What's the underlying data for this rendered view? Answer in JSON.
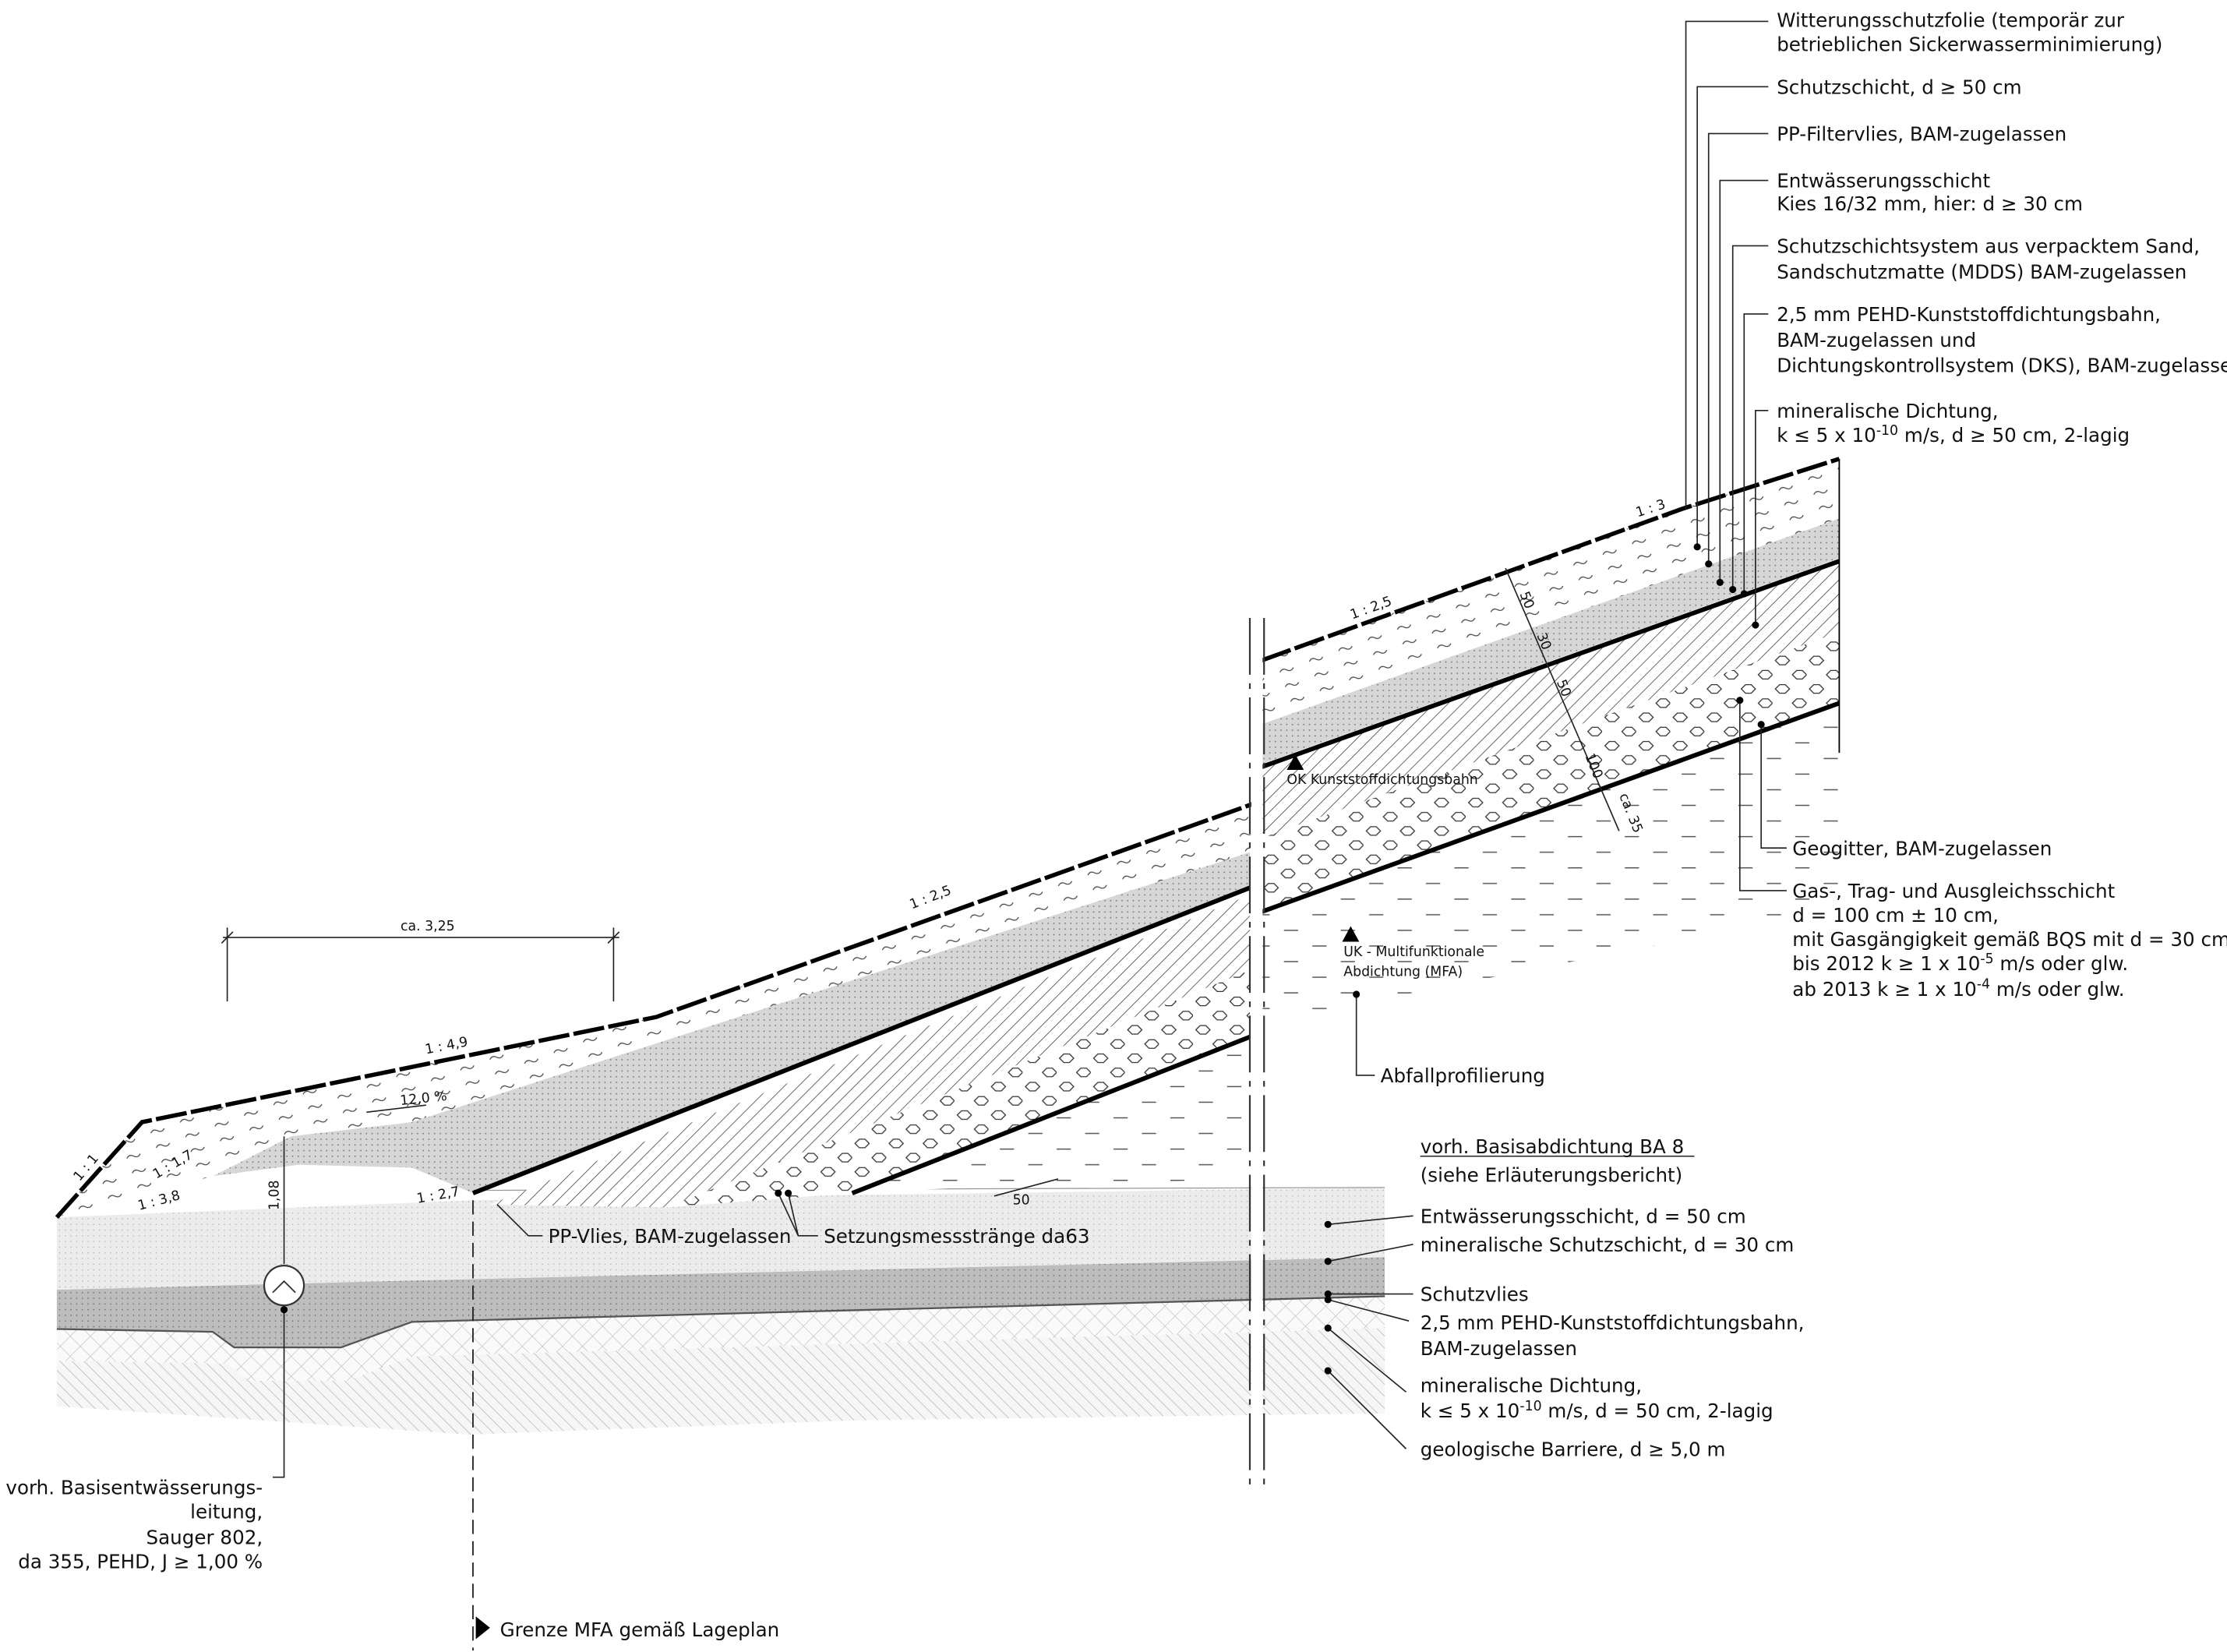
{
  "legend_top": [
    {
      "lines": [
        "Witterungsschutzfolie (temporär zur",
        "betrieblichen Sickerwasserminimierung)"
      ]
    },
    {
      "lines": [
        "Schutzschicht, d ≥ 50 cm"
      ]
    },
    {
      "lines": [
        "PP-Filtervlies, BAM-zugelassen"
      ]
    },
    {
      "lines": [
        "Entwässerungsschicht",
        "Kies 16/32 mm, hier: d ≥ 30 cm"
      ]
    },
    {
      "lines": [
        "Schutzschichtsystem aus verpacktem Sand,",
        "Sandschutzmatte (MDDS) BAM-zugelassen"
      ]
    },
    {
      "lines": [
        "2,5 mm PEHD-Kunststoffdichtungsbahn,",
        "BAM-zugelassen und",
        "Dichtungskontrollsystem (DKS), BAM-zugelassen"
      ]
    },
    {
      "lines": [
        "mineralische Dichtung,",
        [
          "k ≤ 5 x 10",
          "-10",
          " m/s, d ≥ 50 cm, 2-lagig"
        ]
      ]
    }
  ],
  "legend_middle": [
    {
      "lines": [
        "Geogitter, BAM-zugelassen"
      ]
    },
    {
      "lines": [
        "Gas-, Trag- und Ausgleichsschicht",
        "d = 100 cm ± 10 cm,",
        "mit Gasgängigkeit gemäß BQS mit d = 30 cm:",
        [
          "bis 2012 k ≥ 1 x 10",
          "-5",
          " m/s oder glw."
        ],
        [
          "ab 2013 k ≥ 1 x 10",
          "-4",
          " m/s oder glw."
        ]
      ]
    },
    {
      "lines": [
        "Abfallprofilierung"
      ]
    }
  ],
  "legend_base": {
    "heading": [
      "vorh. Basisabdichtung BA 8",
      "(siehe Erläuterungsbericht)"
    ],
    "items": [
      {
        "lines": [
          "Entwässerungsschicht, d = 50 cm"
        ]
      },
      {
        "lines": [
          "mineralische Schutzschicht, d = 30 cm"
        ]
      },
      {
        "lines": [
          "Schutzvlies"
        ]
      },
      {
        "lines": [
          "2,5 mm PEHD-Kunststoffdichtungsbahn,",
          "BAM-zugelassen"
        ]
      },
      {
        "lines": [
          "mineralische Dichtung,",
          [
            "k ≤ 5 x 10",
            "-10",
            " m/s, d = 50 cm, 2-lagig"
          ]
        ]
      },
      {
        "lines": [
          "geologische Barriere, d ≥ 5,0 m"
        ]
      }
    ]
  },
  "markers": {
    "ok": "OK Kunststoffdichtungsbahn",
    "uk": [
      "UK - Multifunktionale",
      "Abdichtung (MFA)"
    ]
  },
  "bottom_labels": {
    "pp_vlies": "PP-Vlies, BAM-zugelassen",
    "setzung": "Setzungsmessstränge da63",
    "grenze": "Grenze MFA gemäß Lageplan",
    "pipe": [
      "vorh. Basisentwässerungs-",
      "leitung,",
      "Sauger 802,",
      "da 355, PEHD, J ≥ 1,00 %"
    ]
  },
  "slopes": [
    "1 : 3",
    "1 : 2,5",
    "1 : 2,5",
    "1 : 4,9",
    "1 : 1",
    "1 : 1,7",
    "1 : 3,8",
    "1 : 2,7",
    "12,0 %"
  ],
  "dimensions": {
    "width": "ca. 3,25",
    "height": "1,08",
    "spacing": "50",
    "thickness": [
      "50",
      "30",
      "50",
      "100",
      "ca. 35"
    ]
  }
}
